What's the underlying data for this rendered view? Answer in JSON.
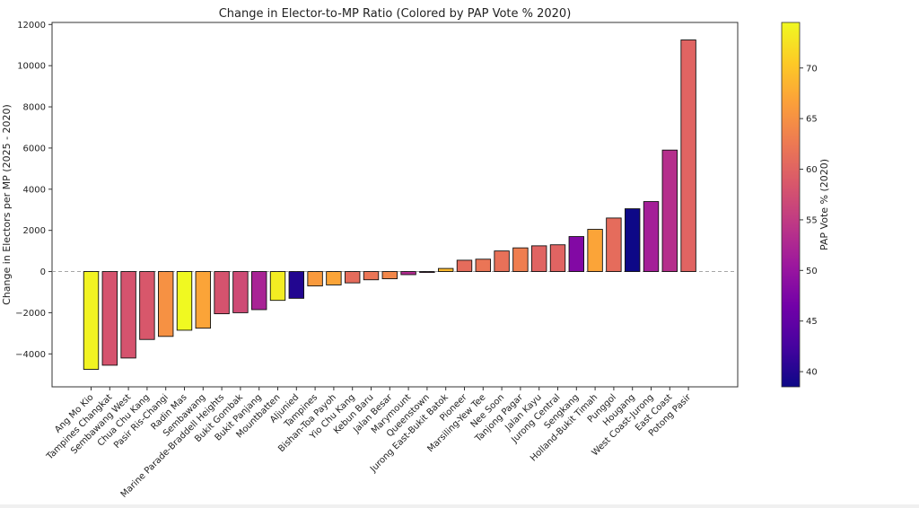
{
  "chart_data": {
    "type": "bar",
    "title": "Change in Elector-to-MP Ratio (Colored by PAP Vote % 2020)",
    "xlabel": "",
    "ylabel": "Change in Electors per MP (2025 - 2020)",
    "ylim": [
      -5600,
      12100
    ],
    "yticks": [
      -4000,
      -2000,
      0,
      2000,
      4000,
      6000,
      8000,
      10000,
      12000
    ],
    "reference_line": 0,
    "categories": [
      "Ang Mo Kio",
      "Tampines Changkat",
      "Sembawang West",
      "Chua Chu Kang",
      "Pasir Ris-Changi",
      "Radin Mas",
      "Sembawang",
      "Marine Parade-Braddell Heights",
      "Bukit Gombak",
      "Bukit Panjang",
      "Mountbatten",
      "Aljunied",
      "Tampines",
      "Bishan-Toa Payoh",
      "Yio Chu Kang",
      "Kebun Baru",
      "Jalan Besar",
      "Marymount",
      "Queenstown",
      "Jurong East-Bukit Batok",
      "Pioneer",
      "Marsiling-Yew Tee",
      "Nee Soon",
      "Tanjong Pagar",
      "Jalan Kayu",
      "Jurong Central",
      "Sengkang",
      "Holland-Bukit Timah",
      "Punggol",
      "Hougang",
      "West Coast-Jurong",
      "East Coast",
      "Potong Pasir"
    ],
    "values": [
      -4750,
      -4550,
      -4200,
      -3300,
      -3150,
      -2850,
      -2750,
      -2050,
      -2000,
      -1850,
      -1400,
      -1300,
      -700,
      -650,
      -550,
      -400,
      -350,
      -150,
      -30,
      150,
      550,
      600,
      1000,
      1150,
      1250,
      1300,
      1700,
      2050,
      2600,
      3050,
      3400,
      5900,
      11250
    ],
    "pap_vote_pct": [
      74,
      58,
      58,
      58.5,
      65,
      74.5,
      67,
      58,
      57,
      52,
      73.5,
      40,
      66,
      67,
      61,
      62,
      64,
      53,
      55,
      69,
      61,
      62,
      61.5,
      63,
      60,
      60,
      48,
      67,
      61,
      38.5,
      51.5,
      53.5,
      60
    ],
    "colorbar": {
      "label": "PAP Vote % (2020)",
      "range": [
        38.5,
        74.5
      ],
      "ticks": [
        40,
        45,
        50,
        55,
        60,
        65,
        70
      ],
      "colors": [
        "#0d0887",
        "#46039f",
        "#7201a8",
        "#9c179e",
        "#bd3786",
        "#d8576b",
        "#ed7953",
        "#fb9f3a",
        "#fdca26",
        "#f0f921"
      ]
    },
    "grid": false
  }
}
